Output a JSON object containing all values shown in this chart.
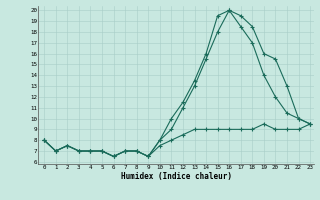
{
  "xlabel": "Humidex (Indice chaleur)",
  "bg_color": "#c8e8e0",
  "line_color": "#1a6b5a",
  "grid_color": "#a8cec8",
  "xlim": [
    -0.5,
    23.3
  ],
  "ylim": [
    5.8,
    20.4
  ],
  "xticks": [
    0,
    1,
    2,
    3,
    4,
    5,
    6,
    7,
    8,
    9,
    10,
    11,
    12,
    13,
    14,
    15,
    16,
    17,
    18,
    19,
    20,
    21,
    22,
    23
  ],
  "yticks": [
    6,
    7,
    8,
    9,
    10,
    11,
    12,
    13,
    14,
    15,
    16,
    17,
    18,
    19,
    20
  ],
  "line1_x": [
    0,
    1,
    2,
    3,
    4,
    5,
    6,
    7,
    8,
    9,
    10,
    11,
    12,
    13,
    14,
    15,
    16,
    17,
    18,
    19,
    20,
    21,
    22,
    23
  ],
  "line1_y": [
    8,
    7,
    7.5,
    7,
    7,
    7,
    6.5,
    7,
    7,
    6.5,
    7.5,
    8,
    8.5,
    9,
    9,
    9,
    9,
    9,
    9,
    9.5,
    9,
    9,
    9,
    9.5
  ],
  "line2_x": [
    0,
    1,
    2,
    3,
    4,
    5,
    6,
    7,
    8,
    9,
    10,
    11,
    12,
    13,
    14,
    15,
    16,
    17,
    18,
    19,
    20,
    21,
    22,
    23
  ],
  "line2_y": [
    8,
    7,
    7.5,
    7,
    7,
    7,
    6.5,
    7,
    7,
    6.5,
    8,
    10,
    11.5,
    13.5,
    16,
    19.5,
    20,
    18.5,
    17,
    14,
    12,
    10.5,
    10,
    9.5
  ],
  "line3_x": [
    0,
    1,
    2,
    3,
    4,
    5,
    6,
    7,
    8,
    9,
    10,
    11,
    12,
    13,
    14,
    15,
    16,
    17,
    18,
    19,
    20,
    21,
    22,
    23
  ],
  "line3_y": [
    8,
    7,
    7.5,
    7,
    7,
    7,
    6.5,
    7,
    7,
    6.5,
    8,
    9,
    11,
    13,
    15.5,
    18,
    20,
    19.5,
    18.5,
    16,
    15.5,
    13,
    10,
    9.5
  ]
}
